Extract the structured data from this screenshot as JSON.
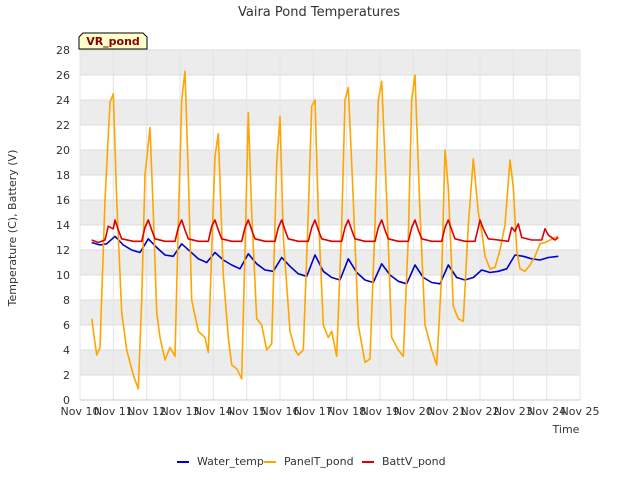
{
  "chart_data": {
    "type": "line",
    "title": "Vaira Pond Temperatures",
    "xlabel": "Time",
    "ylabel": "Temperature (C), Battery (V)",
    "station_label": "VR_pond",
    "xlim": [
      10,
      25
    ],
    "ylim": [
      0,
      28
    ],
    "x_ticks": [
      10,
      11,
      12,
      13,
      14,
      15,
      16,
      17,
      18,
      19,
      20,
      21,
      22,
      23,
      24,
      25
    ],
    "x_tick_labels": [
      "Nov 10",
      "Nov 11",
      "Nov 12",
      "Nov 13",
      "Nov 14",
      "Nov 15",
      "Nov 16",
      "Nov 17",
      "Nov 18",
      "Nov 19",
      "Nov 20",
      "Nov 21",
      "Nov 22",
      "Nov 23",
      "Nov 24",
      "Nov 25"
    ],
    "y_ticks": [
      0,
      2,
      4,
      6,
      8,
      10,
      12,
      14,
      16,
      18,
      20,
      22,
      24,
      26,
      28
    ],
    "grid": "horizontal bands",
    "legend_position": "bottom",
    "series": [
      {
        "name": "Water_temp",
        "color": "#0000cc",
        "x": [
          10.35,
          10.6,
          10.8,
          11.05,
          11.3,
          11.55,
          11.8,
          12.05,
          12.3,
          12.55,
          12.8,
          13.05,
          13.3,
          13.55,
          13.8,
          14.05,
          14.3,
          14.55,
          14.8,
          15.05,
          15.3,
          15.55,
          15.8,
          16.05,
          16.3,
          16.55,
          16.8,
          17.05,
          17.3,
          17.55,
          17.8,
          18.05,
          18.3,
          18.55,
          18.8,
          19.05,
          19.3,
          19.55,
          19.8,
          20.05,
          20.3,
          20.55,
          20.8,
          21.05,
          21.3,
          21.55,
          21.8,
          22.05,
          22.3,
          22.55,
          22.8,
          23.05,
          23.3,
          23.55,
          23.8,
          24.05,
          24.35
        ],
        "y": [
          12.6,
          12.4,
          12.5,
          13.1,
          12.4,
          12.0,
          11.8,
          12.9,
          12.2,
          11.6,
          11.5,
          12.5,
          11.9,
          11.3,
          11.0,
          11.8,
          11.2,
          10.8,
          10.5,
          11.7,
          10.9,
          10.4,
          10.3,
          11.4,
          10.7,
          10.1,
          9.9,
          11.6,
          10.3,
          9.8,
          9.6,
          11.3,
          10.2,
          9.6,
          9.4,
          10.9,
          10.0,
          9.5,
          9.3,
          10.8,
          9.8,
          9.4,
          9.3,
          10.8,
          9.8,
          9.6,
          9.8,
          10.4,
          10.2,
          10.3,
          10.5,
          11.6,
          11.5,
          11.3,
          11.2,
          11.4,
          11.5
        ]
      },
      {
        "name": "PanelT_pond",
        "color": "#ffa500",
        "x": [
          10.35,
          10.5,
          10.6,
          10.75,
          10.9,
          11.0,
          11.1,
          11.25,
          11.4,
          11.6,
          11.75,
          11.85,
          11.95,
          12.1,
          12.2,
          12.3,
          12.4,
          12.55,
          12.7,
          12.85,
          12.95,
          13.05,
          13.15,
          13.25,
          13.35,
          13.55,
          13.75,
          13.85,
          13.95,
          14.05,
          14.15,
          14.3,
          14.45,
          14.55,
          14.7,
          14.85,
          14.95,
          15.05,
          15.15,
          15.3,
          15.45,
          15.6,
          15.75,
          15.9,
          16.0,
          16.1,
          16.3,
          16.45,
          16.55,
          16.7,
          16.85,
          16.95,
          17.05,
          17.15,
          17.3,
          17.45,
          17.55,
          17.7,
          17.85,
          17.95,
          18.05,
          18.2,
          18.35,
          18.55,
          18.7,
          18.85,
          18.95,
          19.05,
          19.2,
          19.35,
          19.55,
          19.7,
          19.85,
          19.95,
          20.05,
          20.2,
          20.35,
          20.55,
          20.7,
          20.85,
          20.95,
          21.05,
          21.2,
          21.35,
          21.5,
          21.65,
          21.8,
          21.95,
          22.05,
          22.15,
          22.3,
          22.45,
          22.6,
          22.75,
          22.9,
          23.0,
          23.1,
          23.2,
          23.35,
          23.5,
          23.65,
          23.8,
          23.95,
          24.1,
          24.25,
          24.35
        ],
        "y": [
          6.5,
          3.6,
          4.2,
          16.0,
          23.8,
          24.5,
          16.0,
          7.0,
          4.0,
          2.0,
          0.9,
          8.0,
          18.0,
          21.8,
          15.0,
          7.0,
          5.0,
          3.2,
          4.2,
          3.5,
          14.0,
          24.0,
          26.3,
          18.0,
          8.0,
          5.5,
          5.0,
          3.8,
          12.0,
          19.5,
          21.3,
          10.0,
          5.0,
          2.8,
          2.5,
          1.7,
          12.0,
          23.0,
          15.0,
          6.5,
          6.0,
          4.0,
          4.5,
          19.0,
          22.7,
          13.0,
          5.5,
          4.0,
          3.6,
          4.0,
          15.0,
          23.5,
          24.0,
          15.0,
          6.0,
          5.0,
          5.5,
          3.5,
          14.0,
          24.0,
          25.0,
          16.0,
          6.0,
          3.0,
          3.3,
          14.0,
          24.0,
          25.5,
          16.0,
          5.0,
          4.0,
          3.5,
          13.0,
          24.0,
          26.0,
          15.0,
          6.0,
          4.0,
          2.8,
          10.0,
          20.0,
          17.0,
          7.5,
          6.5,
          6.3,
          14.0,
          19.3,
          15.0,
          13.5,
          11.5,
          10.5,
          10.6,
          12.0,
          14.0,
          19.2,
          17.0,
          12.0,
          10.5,
          10.3,
          10.8,
          11.5,
          12.5,
          12.6,
          12.8,
          13.0,
          13.1
        ]
      },
      {
        "name": "BattV_pond",
        "color": "#dd0000",
        "x": [
          10.35,
          10.55,
          10.75,
          10.85,
          11.0,
          11.05,
          11.15,
          11.25,
          11.6,
          11.85,
          11.95,
          12.05,
          12.15,
          12.25,
          12.55,
          12.85,
          12.95,
          13.05,
          13.15,
          13.25,
          13.55,
          13.85,
          13.95,
          14.05,
          14.15,
          14.25,
          14.55,
          14.85,
          14.95,
          15.05,
          15.15,
          15.25,
          15.55,
          15.85,
          15.95,
          16.05,
          16.15,
          16.25,
          16.55,
          16.85,
          16.95,
          17.05,
          17.15,
          17.25,
          17.55,
          17.85,
          17.95,
          18.05,
          18.15,
          18.25,
          18.55,
          18.85,
          18.95,
          19.05,
          19.15,
          19.25,
          19.55,
          19.85,
          19.95,
          20.05,
          20.15,
          20.25,
          20.55,
          20.85,
          20.95,
          21.05,
          21.15,
          21.25,
          21.55,
          21.85,
          21.95,
          22.0,
          22.1,
          22.25,
          22.55,
          22.85,
          22.95,
          23.05,
          23.15,
          23.25,
          23.55,
          23.85,
          23.95,
          24.05,
          24.25,
          24.35
        ],
        "y": [
          12.8,
          12.6,
          12.8,
          13.9,
          13.7,
          14.4,
          13.6,
          12.9,
          12.7,
          12.7,
          13.8,
          14.4,
          13.6,
          12.9,
          12.7,
          12.7,
          13.8,
          14.4,
          13.6,
          12.9,
          12.7,
          12.7,
          13.9,
          14.4,
          13.6,
          12.9,
          12.7,
          12.7,
          13.8,
          14.4,
          13.6,
          12.9,
          12.7,
          12.7,
          13.8,
          14.4,
          13.6,
          12.9,
          12.7,
          12.7,
          13.8,
          14.4,
          13.6,
          12.9,
          12.7,
          12.7,
          13.8,
          14.4,
          13.6,
          12.9,
          12.7,
          12.7,
          13.8,
          14.4,
          13.6,
          12.9,
          12.7,
          12.7,
          13.8,
          14.4,
          13.6,
          12.9,
          12.7,
          12.7,
          13.8,
          14.4,
          13.6,
          12.9,
          12.7,
          12.7,
          13.8,
          14.4,
          13.7,
          12.9,
          12.8,
          12.7,
          13.8,
          13.5,
          14.1,
          13.0,
          12.8,
          12.8,
          13.7,
          13.2,
          12.8,
          13.0
        ]
      }
    ]
  }
}
